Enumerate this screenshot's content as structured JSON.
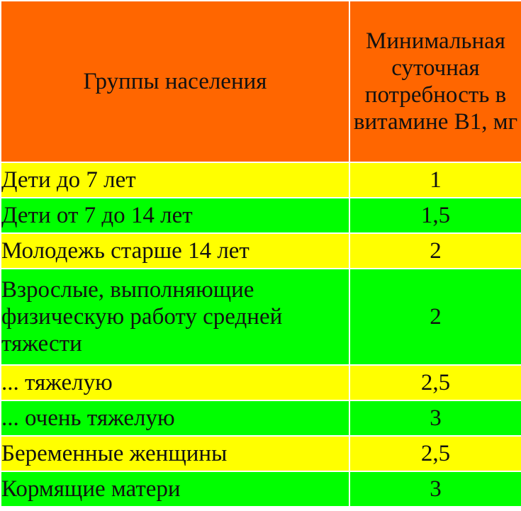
{
  "header": {
    "group_label": "Группы населения",
    "value_label": "Минимальная суточная потребность в витамине В1, мг"
  },
  "colors": {
    "header": "#ff6600",
    "yellow_row": "#ffff00",
    "green_row": "#00ff00"
  },
  "rows": [
    {
      "group": "Дети до 7 лет",
      "value": "1",
      "color": "yellow"
    },
    {
      "group": "Дети от 7 до 14 лет",
      "value": "1,5",
      "color": "green"
    },
    {
      "group": "Молодежь старше 14 лет",
      "value": "2",
      "color": "yellow"
    },
    {
      "group": "Взрослые, выполняющие физическую работу средней тяжести",
      "value": "2",
      "color": "green"
    },
    {
      "group": "... тяжелую",
      "value": "2,5",
      "color": "yellow"
    },
    {
      "group": "... очень тяжелую",
      "value": "3",
      "color": "green"
    },
    {
      "group": "Беременные женщины",
      "value": "2,5",
      "color": "yellow"
    },
    {
      "group": "Кормящие матери",
      "value": "3",
      "color": "green"
    }
  ]
}
